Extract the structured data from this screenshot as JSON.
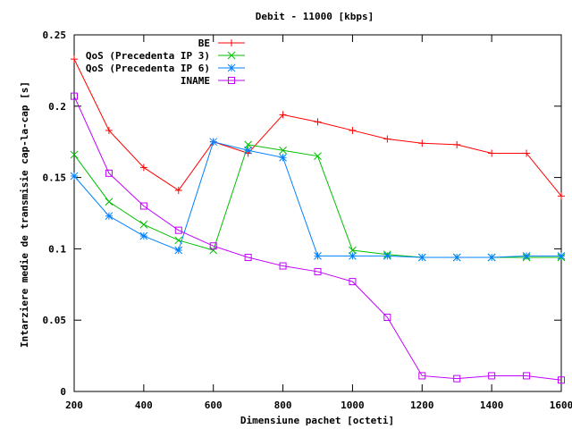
{
  "chart_data": {
    "type": "line",
    "title": "Debit - 11000 [kbps]",
    "xlabel": "Dimensiune pachet [octeti]",
    "ylabel": "Intarziere medie de transmisie cap-la-cap [s]",
    "xlim": [
      200,
      1600
    ],
    "ylim": [
      0,
      0.25
    ],
    "xticks": [
      200,
      400,
      600,
      800,
      1000,
      1200,
      1400,
      1600
    ],
    "yticks": [
      0,
      0.05,
      0.1,
      0.15,
      0.2,
      0.25
    ],
    "ytick_labels": [
      "0",
      "0.05",
      "0.1",
      "0.15",
      "0.2",
      "0.25"
    ],
    "grid": false,
    "legend_position": "top-right",
    "x": [
      200,
      300,
      400,
      500,
      600,
      700,
      800,
      900,
      1000,
      1100,
      1200,
      1300,
      1400,
      1500,
      1600
    ],
    "series": [
      {
        "name": "BE",
        "color": "#ff0000",
        "marker": "plus",
        "values": [
          0.233,
          0.183,
          0.157,
          0.141,
          0.175,
          0.167,
          0.194,
          0.189,
          0.183,
          0.177,
          0.174,
          0.173,
          0.167,
          0.167,
          0.137
        ]
      },
      {
        "name": "QoS (Precedenta IP 3)",
        "color": "#00c000",
        "marker": "cross",
        "values": [
          0.166,
          0.133,
          0.117,
          0.106,
          0.099,
          0.173,
          0.169,
          0.165,
          0.099,
          0.096,
          0.094,
          0.094,
          0.094,
          0.094,
          0.094
        ]
      },
      {
        "name": "QoS (Precedenta IP 6)",
        "color": "#0080ff",
        "marker": "star",
        "values": [
          0.151,
          0.123,
          0.109,
          0.099,
          0.175,
          0.169,
          0.164,
          0.095,
          0.095,
          0.095,
          0.094,
          0.094,
          0.094,
          0.095,
          0.095
        ]
      },
      {
        "name": "INAME",
        "color": "#c000ff",
        "marker": "square",
        "values": [
          0.207,
          0.153,
          0.13,
          0.113,
          0.102,
          0.094,
          0.088,
          0.084,
          0.077,
          0.052,
          0.011,
          0.009,
          0.011,
          0.011,
          0.008
        ]
      }
    ]
  }
}
